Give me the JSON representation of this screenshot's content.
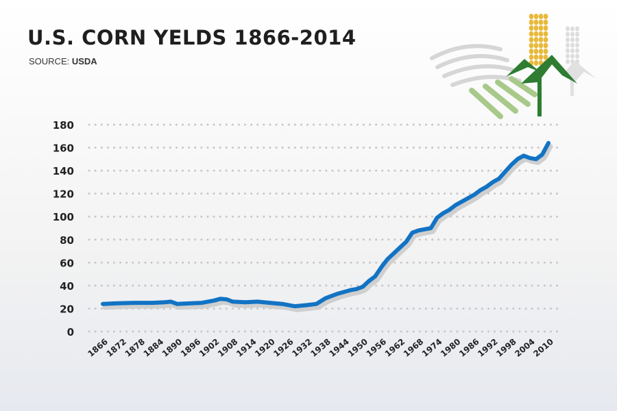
{
  "header": {
    "title": "U.S. CORN YELDS 1866-2014",
    "source_label": "SOURCE:",
    "source_value": "USDA"
  },
  "colors": {
    "line": "#1273c4",
    "shadow": "#cfcfcf",
    "grid": "#c8c8c8",
    "corn_kernel": "#e8b93a",
    "leaf": "#2e7d32",
    "light_green": "#a8c98a",
    "grey_deco": "#d6d6d6"
  },
  "chart_data": {
    "type": "line",
    "title": "U.S. CORN YELDS 1866-2014",
    "xlabel": "",
    "ylabel": "",
    "ylim": [
      0,
      180
    ],
    "yticks": [
      0,
      20,
      40,
      60,
      80,
      100,
      120,
      140,
      160,
      180
    ],
    "xticks": [
      "1866",
      "1872",
      "1878",
      "1884",
      "1890",
      "1896",
      "1902",
      "1908",
      "1914",
      "1920",
      "1926",
      "1932",
      "1938",
      "1944",
      "1950",
      "1956",
      "1962",
      "1968",
      "1974",
      "1980",
      "1986",
      "1992",
      "1998",
      "2004",
      "2010"
    ],
    "grid": true,
    "series": [
      {
        "x": [
          1866,
          1870,
          1876,
          1882,
          1886,
          1888,
          1890,
          1894,
          1898,
          1902,
          1904,
          1906,
          1908,
          1912,
          1916,
          1920,
          1924,
          1928,
          1932,
          1935,
          1938,
          1942,
          1946,
          1948,
          1950,
          1952,
          1954,
          1956,
          1958,
          1960,
          1962,
          1964,
          1966,
          1968,
          1972,
          1974,
          1976,
          1978,
          1980,
          1982,
          1984,
          1986,
          1988,
          1990,
          1992,
          1994,
          1996,
          1998,
          2000,
          2002,
          2004,
          2006,
          2008,
          2010
        ],
        "y": [
          24,
          24.5,
          25,
          25,
          25.5,
          26,
          24,
          24.5,
          25,
          27,
          28.5,
          28,
          26,
          25.5,
          26,
          25,
          24,
          22,
          23,
          24,
          29,
          33,
          36,
          37,
          39,
          44,
          48,
          56,
          63,
          68,
          73,
          78,
          86,
          88,
          90,
          99,
          103,
          106,
          110,
          113,
          116,
          119,
          123,
          126,
          130,
          133,
          139,
          145,
          150,
          153,
          151,
          150,
          154,
          164
        ]
      }
    ]
  }
}
